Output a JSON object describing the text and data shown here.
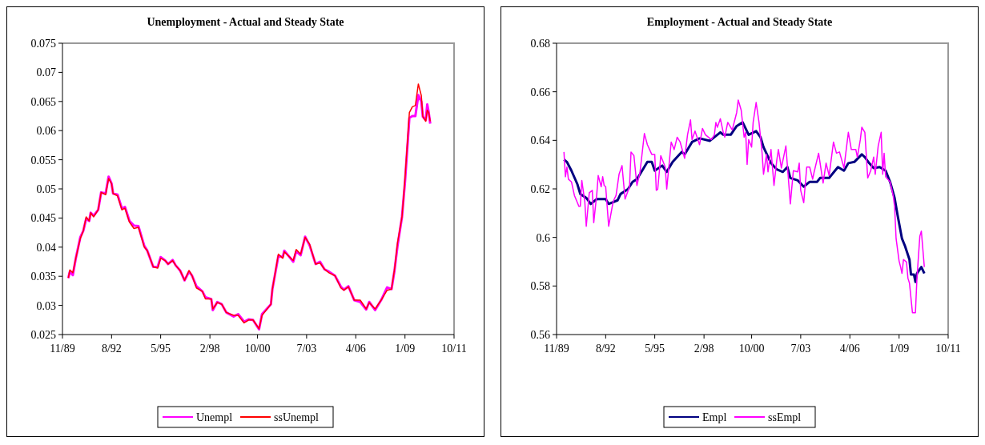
{
  "chart_data": [
    {
      "type": "line",
      "title": "Unemployment - Actual and Steady State",
      "legend": "bottom",
      "x": [
        "1990-03",
        "1990-04",
        "1990-06",
        "1990-08",
        "1990-11",
        "1991-01",
        "1991-03",
        "1991-05",
        "1991-06",
        "1991-08",
        "1991-11",
        "1992-01",
        "1992-04",
        "1992-06",
        "1992-08",
        "1992-09",
        "1992-12",
        "1993-03",
        "1993-05",
        "1993-08",
        "1993-11",
        "1994-02",
        "1994-06",
        "1994-08",
        "1994-12",
        "1995-03",
        "1995-05",
        "1995-08",
        "1995-10",
        "1996-01",
        "1996-03",
        "1996-06",
        "1996-09",
        "1996-12",
        "1997-02",
        "1997-05",
        "1997-09",
        "1997-11",
        "1998-03",
        "1998-04",
        "1998-07",
        "1998-10",
        "1999-01",
        "1999-06",
        "1999-09",
        "2000-01",
        "2000-04",
        "2000-07",
        "2000-11",
        "2001-01",
        "2001-07",
        "2001-08",
        "2001-12",
        "2002-03",
        "2002-04",
        "2002-10",
        "2002-12",
        "2003-03",
        "2003-06",
        "2003-09",
        "2004-01",
        "2004-04",
        "2004-07",
        "2004-10",
        "2005-02",
        "2005-06",
        "2005-08",
        "2005-11",
        "2006-03",
        "2006-07",
        "2006-11",
        "2007-01",
        "2007-05",
        "2007-09",
        "2008-01",
        "2008-04",
        "2008-06",
        "2008-08",
        "2008-11",
        "2009-01",
        "2009-04",
        "2009-06",
        "2009-08",
        "2009-10",
        "2009-12",
        "2010-01",
        "2010-03",
        "2010-04",
        "2010-05",
        "2010-06"
      ],
      "series": [
        {
          "name": "Unempl",
          "color": "#ff00ff",
          "values": [
            0.0347,
            0.0358,
            0.0352,
            0.0381,
            0.0417,
            0.0428,
            0.0449,
            0.0445,
            0.0459,
            0.0454,
            0.0464,
            0.0494,
            0.0492,
            0.0521,
            0.0509,
            0.0492,
            0.049,
            0.0466,
            0.0469,
            0.0445,
            0.0437,
            0.0436,
            0.0402,
            0.0394,
            0.0366,
            0.0366,
            0.0383,
            0.0377,
            0.0371,
            0.0378,
            0.0369,
            0.036,
            0.0343,
            0.0358,
            0.0351,
            0.0333,
            0.0324,
            0.0314,
            0.0311,
            0.0292,
            0.0306,
            0.0302,
            0.0288,
            0.0281,
            0.0285,
            0.0272,
            0.0276,
            0.0275,
            0.0259,
            0.0285,
            0.0302,
            0.0328,
            0.0385,
            0.0383,
            0.0394,
            0.0375,
            0.0393,
            0.0386,
            0.0418,
            0.0403,
            0.0371,
            0.0375,
            0.0362,
            0.0358,
            0.0351,
            0.0332,
            0.0327,
            0.0333,
            0.0309,
            0.0306,
            0.0293,
            0.0306,
            0.0292,
            0.0309,
            0.0331,
            0.0328,
            0.036,
            0.0402,
            0.0452,
            0.0512,
            0.0622,
            0.0625,
            0.0625,
            0.0661,
            0.065,
            0.0624,
            0.0618,
            0.0645,
            0.0631,
            0.0612
          ]
        },
        {
          "name": "ssUnempl",
          "color": "#ff0000",
          "values": [
            0.0347,
            0.0361,
            0.0356,
            0.0381,
            0.0415,
            0.0428,
            0.0452,
            0.0445,
            0.0459,
            0.0452,
            0.0464,
            0.0494,
            0.049,
            0.0518,
            0.0509,
            0.0492,
            0.0488,
            0.0464,
            0.0467,
            0.0443,
            0.0432,
            0.0434,
            0.04,
            0.0394,
            0.0366,
            0.0364,
            0.0381,
            0.0377,
            0.0371,
            0.0377,
            0.0369,
            0.036,
            0.0343,
            0.036,
            0.0351,
            0.033,
            0.0324,
            0.0311,
            0.0311,
            0.0294,
            0.0305,
            0.0302,
            0.0288,
            0.0283,
            0.0283,
            0.027,
            0.0275,
            0.0275,
            0.026,
            0.0283,
            0.0302,
            0.0328,
            0.0388,
            0.0381,
            0.0392,
            0.0377,
            0.0396,
            0.0388,
            0.0417,
            0.0405,
            0.0371,
            0.0373,
            0.0362,
            0.0356,
            0.0351,
            0.033,
            0.0326,
            0.0332,
            0.0309,
            0.0309,
            0.0294,
            0.0305,
            0.0294,
            0.0309,
            0.0326,
            0.0328,
            0.0362,
            0.0407,
            0.0452,
            0.0518,
            0.0631,
            0.0641,
            0.0643,
            0.068,
            0.066,
            0.0624,
            0.0616,
            0.0635,
            0.0631,
            0.0616
          ]
        }
      ],
      "xlim": [
        "1989-11",
        "2011-10"
      ],
      "xticks": [
        {
          "value": "1989-11",
          "label": "11/89"
        },
        {
          "value": "1992-08",
          "label": "8/92"
        },
        {
          "value": "1995-05",
          "label": "5/95"
        },
        {
          "value": "1998-02",
          "label": "2/98"
        },
        {
          "value": "2000-10",
          "label": "10/00"
        },
        {
          "value": "2003-07",
          "label": "7/03"
        },
        {
          "value": "2006-04",
          "label": "4/06"
        },
        {
          "value": "2009-01",
          "label": "1/09"
        },
        {
          "value": "2011-10",
          "label": "10/11"
        }
      ],
      "ylim": [
        0.025,
        0.075
      ],
      "yticks": [
        0.025,
        0.03,
        0.035,
        0.04,
        0.045,
        0.05,
        0.055,
        0.06,
        0.065,
        0.07,
        0.075
      ]
    },
    {
      "type": "line",
      "title": "Employment - Actual and Steady State",
      "legend": "bottom",
      "series": [
        {
          "name": "Empl",
          "color": "#000080",
          "x": [
            "1990-04",
            "1990-06",
            "1990-09",
            "1991-01",
            "1991-03",
            "1991-07",
            "1991-10",
            "1992-02",
            "1992-08",
            "1992-10",
            "1993-04",
            "1993-06",
            "1993-11",
            "1994-02",
            "1994-05",
            "1994-08",
            "1994-12",
            "1995-03",
            "1995-05",
            "1995-10",
            "1996-01",
            "1996-05",
            "1996-11",
            "1997-01",
            "1997-06",
            "1997-11",
            "1998-06",
            "1999-01",
            "1999-03",
            "1999-08",
            "1999-12",
            "2000-04",
            "2000-08",
            "2001-01",
            "2001-04",
            "2001-06",
            "2001-11",
            "2002-03",
            "2002-07",
            "2002-10",
            "2002-12",
            "2003-05",
            "2003-09",
            "2004-01",
            "2004-06",
            "2004-08",
            "2005-02",
            "2005-06",
            "2005-08",
            "2005-12",
            "2006-03",
            "2006-07",
            "2006-12",
            "2007-02",
            "2007-05",
            "2007-08",
            "2007-12",
            "2008-04",
            "2008-07",
            "2008-10",
            "2008-12",
            "2009-03",
            "2009-05",
            "2009-08",
            "2009-09",
            "2009-11",
            "2009-12",
            "2010-01",
            "2010-04",
            "2010-06"
          ],
          "values": [
            0.6321,
            0.6311,
            0.6275,
            0.6219,
            0.6179,
            0.6163,
            0.6138,
            0.6158,
            0.6158,
            0.6138,
            0.6153,
            0.6179,
            0.6199,
            0.6229,
            0.624,
            0.627,
            0.6311,
            0.6311,
            0.6275,
            0.6296,
            0.627,
            0.6311,
            0.6352,
            0.6342,
            0.6393,
            0.6408,
            0.6398,
            0.6433,
            0.6423,
            0.6423,
            0.6459,
            0.6474,
            0.6423,
            0.6438,
            0.6413,
            0.6372,
            0.6306,
            0.628,
            0.627,
            0.629,
            0.6245,
            0.6235,
            0.6209,
            0.6229,
            0.6229,
            0.6245,
            0.6245,
            0.6275,
            0.629,
            0.6275,
            0.6306,
            0.6311,
            0.6342,
            0.6331,
            0.6306,
            0.6286,
            0.629,
            0.6275,
            0.6229,
            0.6163,
            0.6092,
            0.5995,
            0.5965,
            0.5909,
            0.5847,
            0.5847,
            0.5817,
            0.5852,
            0.5878,
            0.5852
          ]
        },
        {
          "name": "ssEmpl",
          "color": "#ff00ff",
          "x": [
            "1990-04",
            "1990-05",
            "1990-06",
            "1990-07",
            "1990-09",
            "1990-11",
            "1991-02",
            "1991-03",
            "1991-04",
            "1991-06",
            "1991-07",
            "1991-09",
            "1991-11",
            "1991-12",
            "1992-02",
            "1992-03",
            "1992-05",
            "1992-06",
            "1992-07",
            "1992-08",
            "1992-10",
            "1993-01",
            "1993-03",
            "1993-05",
            "1993-07",
            "1993-09",
            "1993-12",
            "1994-01",
            "1994-03",
            "1994-05",
            "1994-07",
            "1994-10",
            "1994-12",
            "1995-03",
            "1995-05",
            "1995-06",
            "1995-07",
            "1995-09",
            "1995-12",
            "1996-01",
            "1996-04",
            "1996-06",
            "1996-08",
            "1996-10",
            "1997-01",
            "1997-03",
            "1997-05",
            "1997-06",
            "1997-08",
            "1997-11",
            "1998-01",
            "1998-03",
            "1998-07",
            "1998-09",
            "1998-10",
            "1998-11",
            "1999-01",
            "1999-03",
            "1999-04",
            "1999-06",
            "1999-09",
            "1999-12",
            "2000-01",
            "2000-03",
            "2000-05",
            "2000-06",
            "2000-07",
            "2000-08",
            "2000-10",
            "2000-11",
            "2001-01",
            "2001-03",
            "2001-05",
            "2001-06",
            "2001-08",
            "2001-09",
            "2001-11",
            "2002-01",
            "2002-03",
            "2002-04",
            "2002-06",
            "2002-09",
            "2002-12",
            "2003-02",
            "2003-05",
            "2003-06",
            "2003-07",
            "2003-09",
            "2003-11",
            "2004-01",
            "2004-03",
            "2004-04",
            "2004-07",
            "2004-10",
            "2004-12",
            "2005-02",
            "2005-05",
            "2005-07",
            "2005-09",
            "2005-12",
            "2006-03",
            "2006-05",
            "2006-08",
            "2006-09",
            "2006-11",
            "2006-12",
            "2007-02",
            "2007-04",
            "2007-06",
            "2007-08",
            "2007-09",
            "2007-11",
            "2008-01",
            "2008-02",
            "2008-03",
            "2008-04",
            "2008-07",
            "2008-09",
            "2008-10",
            "2008-11",
            "2009-01",
            "2009-02",
            "2009-03",
            "2009-04",
            "2009-06",
            "2009-07",
            "2009-08",
            "2009-10",
            "2009-12",
            "2010-01",
            "2010-03",
            "2010-04",
            "2010-06"
          ],
          "values": [
            0.6352,
            0.625,
            0.629,
            0.624,
            0.6229,
            0.6173,
            0.6128,
            0.6128,
            0.6235,
            0.6148,
            0.6046,
            0.6184,
            0.6194,
            0.6061,
            0.6179,
            0.6255,
            0.6209,
            0.625,
            0.6214,
            0.6209,
            0.6046,
            0.6148,
            0.6173,
            0.626,
            0.6296,
            0.6158,
            0.6209,
            0.6352,
            0.6337,
            0.6214,
            0.6265,
            0.6428,
            0.6382,
            0.6342,
            0.6342,
            0.6194,
            0.6199,
            0.6337,
            0.629,
            0.6199,
            0.6393,
            0.6362,
            0.6413,
            0.6393,
            0.6326,
            0.6423,
            0.6484,
            0.6403,
            0.6438,
            0.6382,
            0.6449,
            0.6423,
            0.6403,
            0.6423,
            0.6474,
            0.6454,
            0.6489,
            0.6433,
            0.6413,
            0.6474,
            0.6443,
            0.6515,
            0.6566,
            0.6525,
            0.6413,
            0.6433,
            0.6301,
            0.6403,
            0.6372,
            0.6474,
            0.6556,
            0.6474,
            0.6352,
            0.626,
            0.6342,
            0.627,
            0.6362,
            0.6214,
            0.6321,
            0.6362,
            0.6286,
            0.6377,
            0.6138,
            0.6275,
            0.627,
            0.6306,
            0.6194,
            0.6143,
            0.629,
            0.629,
            0.624,
            0.627,
            0.6347,
            0.6224,
            0.6306,
            0.6255,
            0.6393,
            0.6347,
            0.6352,
            0.6286,
            0.6433,
            0.6362,
            0.6362,
            0.6331,
            0.6403,
            0.6454,
            0.6433,
            0.6245,
            0.6275,
            0.6331,
            0.626,
            0.6377,
            0.6433,
            0.626,
            0.6347,
            0.625,
            0.6229,
            0.6173,
            0.6128,
            0.5995,
            0.5903,
            0.5878,
            0.5852,
            0.5909,
            0.5899,
            0.5832,
            0.5812,
            0.569,
            0.569,
            0.5832,
            0.6005,
            0.6026,
            0.5878
          ]
        }
      ],
      "xlim": [
        "1989-11",
        "2011-10"
      ],
      "xticks": [
        {
          "value": "1989-11",
          "label": "11/89"
        },
        {
          "value": "1992-08",
          "label": "8/92"
        },
        {
          "value": "1995-05",
          "label": "5/95"
        },
        {
          "value": "1998-02",
          "label": "2/98"
        },
        {
          "value": "2000-10",
          "label": "10/00"
        },
        {
          "value": "2003-07",
          "label": "7/03"
        },
        {
          "value": "2006-04",
          "label": "4/06"
        },
        {
          "value": "2009-01",
          "label": "1/09"
        },
        {
          "value": "2011-10",
          "label": "10/11"
        }
      ],
      "ylim": [
        0.56,
        0.68
      ],
      "yticks": [
        0.56,
        0.58,
        0.6,
        0.62,
        0.64,
        0.66,
        0.68
      ]
    }
  ]
}
